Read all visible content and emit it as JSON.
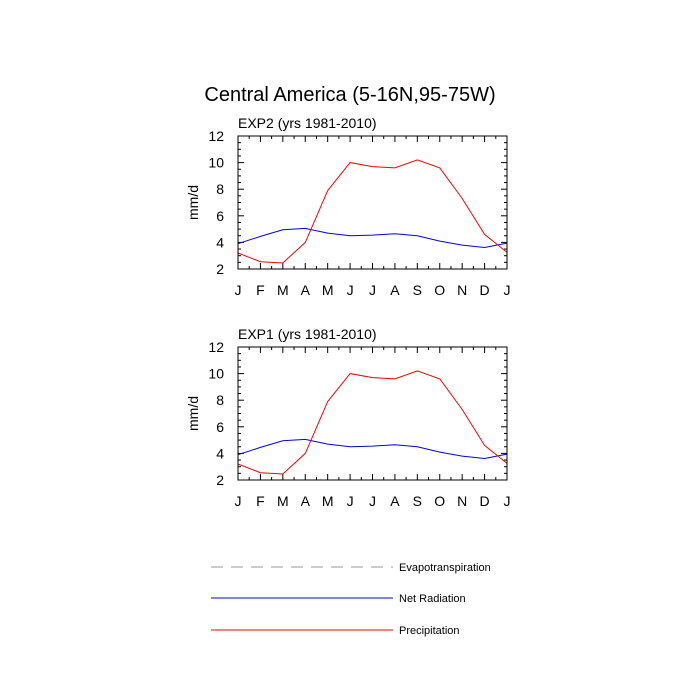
{
  "title": "Central America (5-16N,95-75W)",
  "chart_data": [
    {
      "type": "line",
      "panel_title": "EXP2 (yrs 1981-2010)",
      "ylabel": "mm/d",
      "ylim": [
        2,
        12
      ],
      "yticks": [
        "2",
        "4",
        "6",
        "8",
        "10",
        "12"
      ],
      "categories": [
        "J",
        "F",
        "M",
        "A",
        "M",
        "J",
        "J",
        "A",
        "S",
        "O",
        "N",
        "D",
        "J"
      ],
      "series": [
        {
          "name": "Net Radiation",
          "color": "#0000ff",
          "values": [
            3.9,
            4.45,
            4.95,
            5.05,
            4.7,
            4.5,
            4.55,
            4.65,
            4.5,
            4.1,
            3.8,
            3.62,
            3.95
          ]
        },
        {
          "name": "Precipitation",
          "color": "#ff0000",
          "values": [
            3.2,
            2.55,
            2.45,
            4.0,
            7.9,
            10.0,
            9.7,
            9.6,
            10.2,
            9.6,
            7.3,
            4.6,
            3.25
          ]
        }
      ]
    },
    {
      "type": "line",
      "panel_title": "EXP1 (yrs 1981-2010)",
      "ylabel": "mm/d",
      "ylim": [
        2,
        12
      ],
      "yticks": [
        "2",
        "4",
        "6",
        "8",
        "10",
        "12"
      ],
      "categories": [
        "J",
        "F",
        "M",
        "A",
        "M",
        "J",
        "J",
        "A",
        "S",
        "O",
        "N",
        "D",
        "J"
      ],
      "series": [
        {
          "name": "Net Radiation",
          "color": "#0000ff",
          "values": [
            3.9,
            4.45,
            4.95,
            5.05,
            4.7,
            4.5,
            4.55,
            4.65,
            4.5,
            4.1,
            3.8,
            3.62,
            3.95
          ]
        },
        {
          "name": "Precipitation",
          "color": "#ff0000",
          "values": [
            3.2,
            2.55,
            2.45,
            4.0,
            7.9,
            10.0,
            9.7,
            9.6,
            10.2,
            9.6,
            7.3,
            4.6,
            3.25
          ]
        }
      ]
    }
  ],
  "legend": [
    {
      "label": "Evapotranspiration",
      "color": "#999999",
      "dashed": true
    },
    {
      "label": "Net Radiation",
      "color": "#0000ff",
      "dashed": false
    },
    {
      "label": "Precipitation",
      "color": "#ff0000",
      "dashed": false
    }
  ]
}
